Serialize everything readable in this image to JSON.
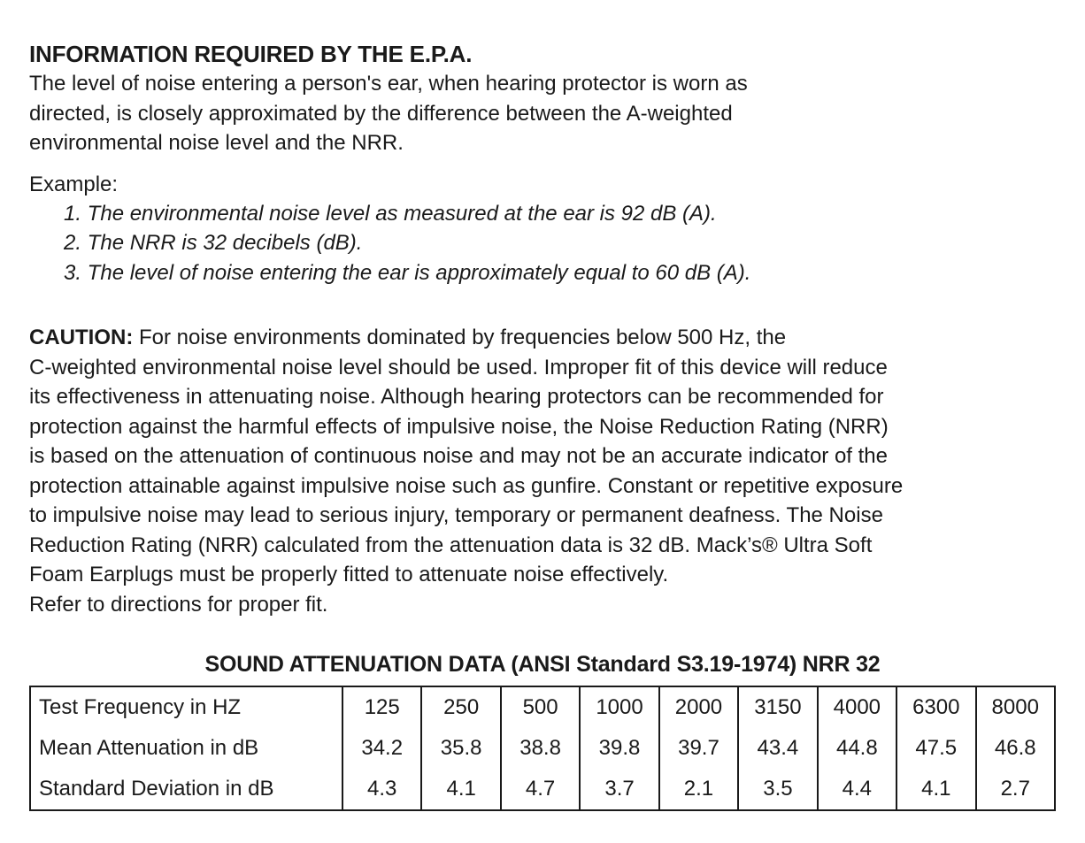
{
  "colors": {
    "background": "#ffffff",
    "text": "#1a1a1a",
    "table_border": "#1a1a1a"
  },
  "epa": {
    "heading": "INFORMATION REQUIRED BY THE E.P.A.",
    "body": "The level of noise entering a person's ear, when hearing protector is worn as\ndirected, is closely approximated by the difference between the A-weighted\nenvironmental noise level and the NRR.",
    "example_label": "Example:",
    "example_items": [
      "1. The environmental noise level as measured at the ear is 92 dB (A).",
      "2. The NRR is 32 decibels (dB).",
      "3. The level of noise entering the ear is approximately equal to 60 dB (A)."
    ]
  },
  "caution": {
    "label": "CAUTION:",
    "body": " For noise environments dominated by frequencies below 500 Hz, the\nC-weighted environmental noise level should be used. Improper fit of this device will reduce\nits effectiveness in attenuating noise. Although hearing protectors can be recommended for\nprotection against the harmful effects of impulsive noise, the Noise Reduction Rating (NRR)\nis based on the attenuation of continuous noise and may not be an accurate indicator of the\nprotection attainable against impulsive noise such as gunfire. Constant or repetitive exposure\nto impulsive noise may lead to serious injury, temporary or permanent deafness. The Noise\nReduction Rating (NRR) calculated from the attenuation data is 32 dB. Mack’s® Ultra Soft\nFoam Earplugs must be properly fitted to attenuate noise effectively.\nRefer to directions for proper fit."
  },
  "attenuation_table": {
    "title": "SOUND ATTENUATION DATA (ANSI Standard S3.19-1974) NRR 32",
    "rows": [
      {
        "label": "Test Frequency in HZ",
        "values": [
          "125",
          "250",
          "500",
          "1000",
          "2000",
          "3150",
          "4000",
          "6300",
          "8000"
        ]
      },
      {
        "label": "Mean Attenuation in dB",
        "values": [
          "34.2",
          "35.8",
          "38.8",
          "39.8",
          "39.7",
          "43.4",
          "44.8",
          "47.5",
          "46.8"
        ]
      },
      {
        "label": "Standard Deviation in dB",
        "values": [
          "4.3",
          "4.1",
          "4.7",
          "3.7",
          "2.1",
          "3.5",
          "4.4",
          "4.1",
          "2.7"
        ]
      }
    ]
  }
}
